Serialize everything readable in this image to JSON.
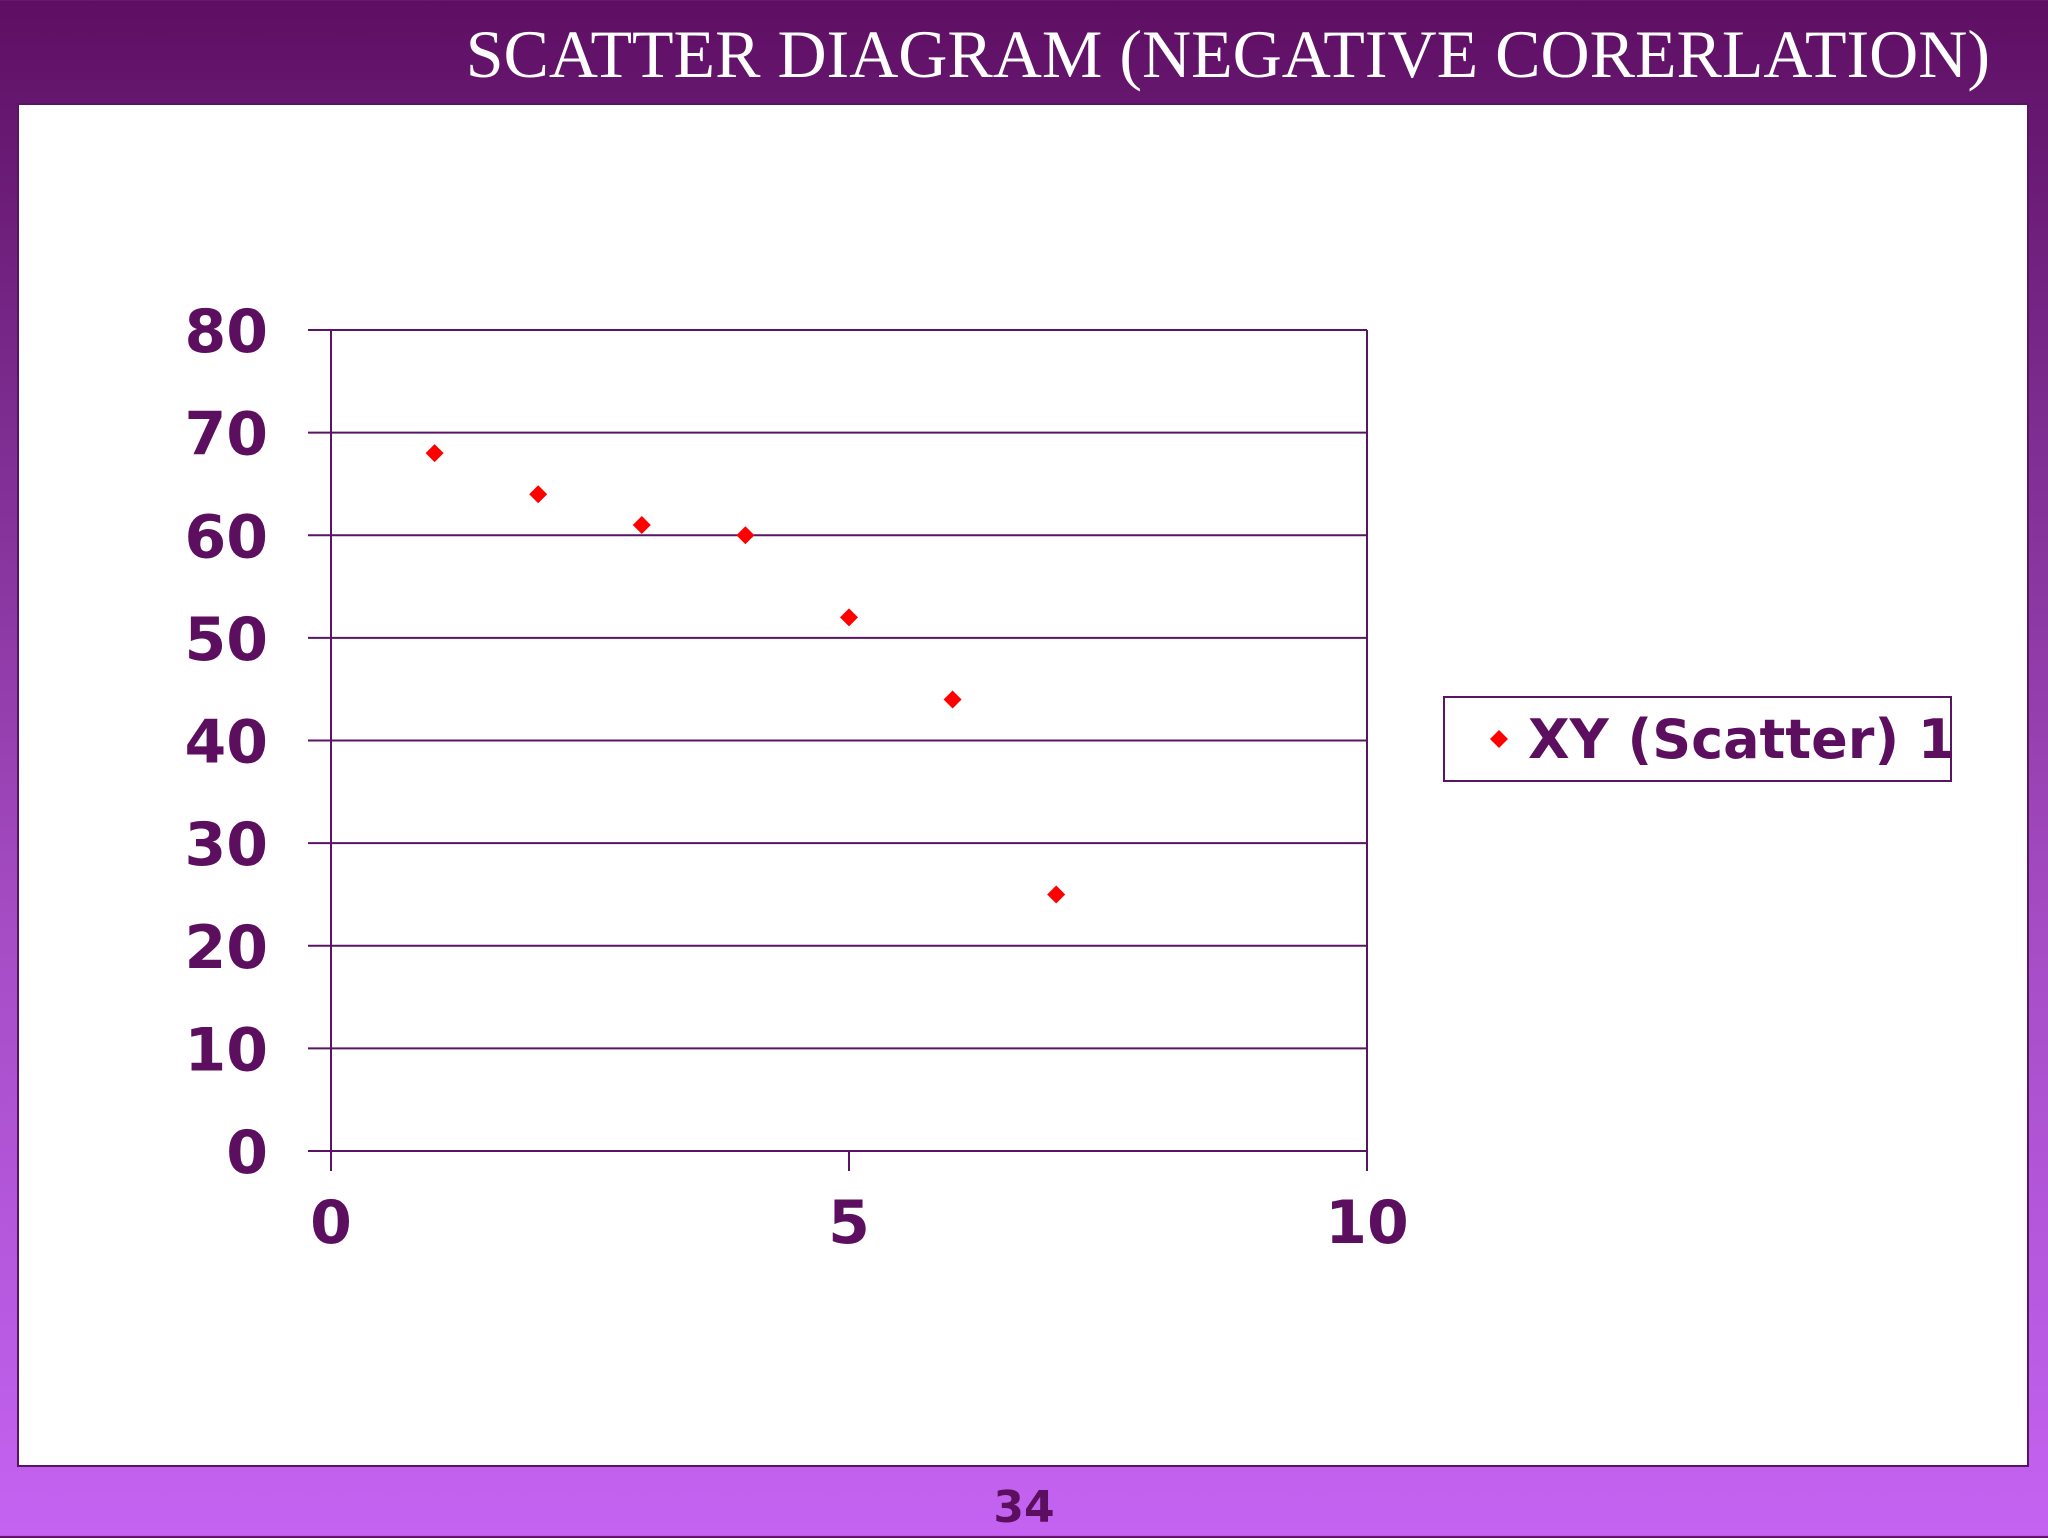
{
  "slide": {
    "title": "SCATTER DIAGRAM (NEGATIVE CORERLATION)",
    "page_number": "34"
  },
  "colors": {
    "marker": "#ff0000",
    "axis_text": "#5b0f5e",
    "grid": "#5a1464"
  },
  "chart_data": {
    "type": "scatter",
    "title": "",
    "xlabel": "",
    "ylabel": "",
    "xlim": [
      0,
      10
    ],
    "ylim": [
      0,
      80
    ],
    "x_ticks": [
      0,
      5,
      10
    ],
    "y_ticks": [
      0,
      10,
      20,
      30,
      40,
      50,
      60,
      70,
      80
    ],
    "grid": "horizontal",
    "legend": "right",
    "series": [
      {
        "name": "XY (Scatter) 1",
        "marker": "diamond",
        "points": [
          {
            "x": 1,
            "y": 68
          },
          {
            "x": 2,
            "y": 64
          },
          {
            "x": 3,
            "y": 61
          },
          {
            "x": 4,
            "y": 60
          },
          {
            "x": 5,
            "y": 52
          },
          {
            "x": 6,
            "y": 44
          },
          {
            "x": 7,
            "y": 25
          }
        ]
      }
    ]
  }
}
